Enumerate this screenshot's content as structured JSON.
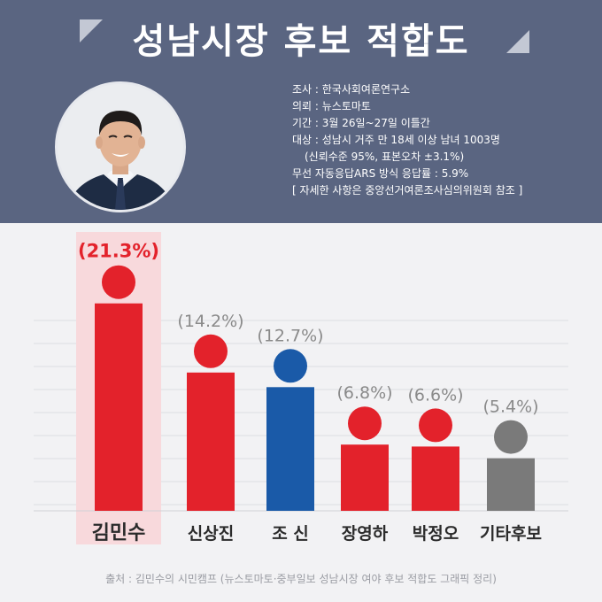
{
  "header": {
    "title": "성남시장 후보 적합도"
  },
  "photo": {
    "alt": "김민수 후보 사진"
  },
  "survey_info": {
    "lines": [
      "조사 : 한국사회여론연구소",
      "의뢰 : 뉴스토마토",
      "기간 : 3월 26일~27일 이틀간",
      "대상 : 성남시 거주 만 18세 이상 남녀 1003명",
      "(신뢰수준 95%, 표본오차 ±3.1%)",
      "무선 자동응답ARS 방식   응답률 : 5.9%",
      "[ 자세한 사항은 중앙선거여론조사심의위원회 참조 ]"
    ]
  },
  "chart_data": {
    "type": "bar",
    "categories": [
      "김민수",
      "신상진",
      "조 신",
      "장영하",
      "박정오",
      "기타후보"
    ],
    "values": [
      21.3,
      14.2,
      12.7,
      6.8,
      6.6,
      5.4
    ],
    "value_labels": [
      "(21.3%)",
      "(14.2%)",
      "(12.7%)",
      "(6.8%)",
      "(6.6%)",
      "(5.4%)"
    ],
    "colors": [
      "#e3222b",
      "#e3222b",
      "#1a5aa8",
      "#e3222b",
      "#e3222b",
      "#7a7a7a"
    ],
    "highlight_index": 0,
    "highlight_color": "#f8d9dc",
    "highlight_label_color": "#e3222b",
    "label_color": "#8a8a8a",
    "grid": true
  },
  "footer": {
    "source": "출처 : 김민수의 시민캠프 (뉴스토마토·중부일보 성남시장 여야 후보 적합도 그래픽 정리)"
  }
}
